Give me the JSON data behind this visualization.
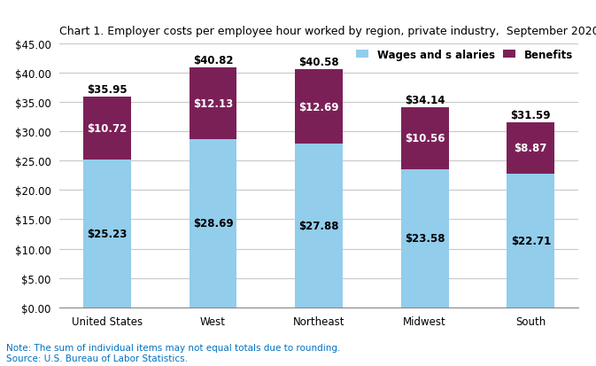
{
  "title": "Chart 1. Employer costs per employee hour worked by region, private industry,  September 2020",
  "categories": [
    "United States",
    "West",
    "Northeast",
    "Midwest",
    "South"
  ],
  "wages": [
    25.23,
    28.69,
    27.88,
    23.58,
    22.71
  ],
  "benefits": [
    10.72,
    12.13,
    12.69,
    10.56,
    8.87
  ],
  "totals": [
    35.95,
    40.82,
    40.58,
    34.14,
    31.59
  ],
  "wages_color": "#92CDEC",
  "benefits_color": "#7B2057",
  "wages_label": "Wages and s alaries",
  "benefits_label": "Benefits",
  "wages_text_color": "#000000",
  "benefits_text_color": "#ffffff",
  "total_text_color": "#000000",
  "ylim": [
    0,
    45
  ],
  "yticks": [
    0,
    5,
    10,
    15,
    20,
    25,
    30,
    35,
    40,
    45
  ],
  "note": "Note: The sum of individual items may not equal totals due to rounding.\nSource: U.S. Bureau of Labor Statistics.",
  "note_color": "#0070C0",
  "title_fontsize": 9.0,
  "label_fontsize": 8.5,
  "tick_fontsize": 8.5,
  "note_fontsize": 7.5,
  "legend_fontsize": 8.5,
  "background_color": "#ffffff",
  "grid_color": "#c8c8c8",
  "bar_width": 0.45
}
